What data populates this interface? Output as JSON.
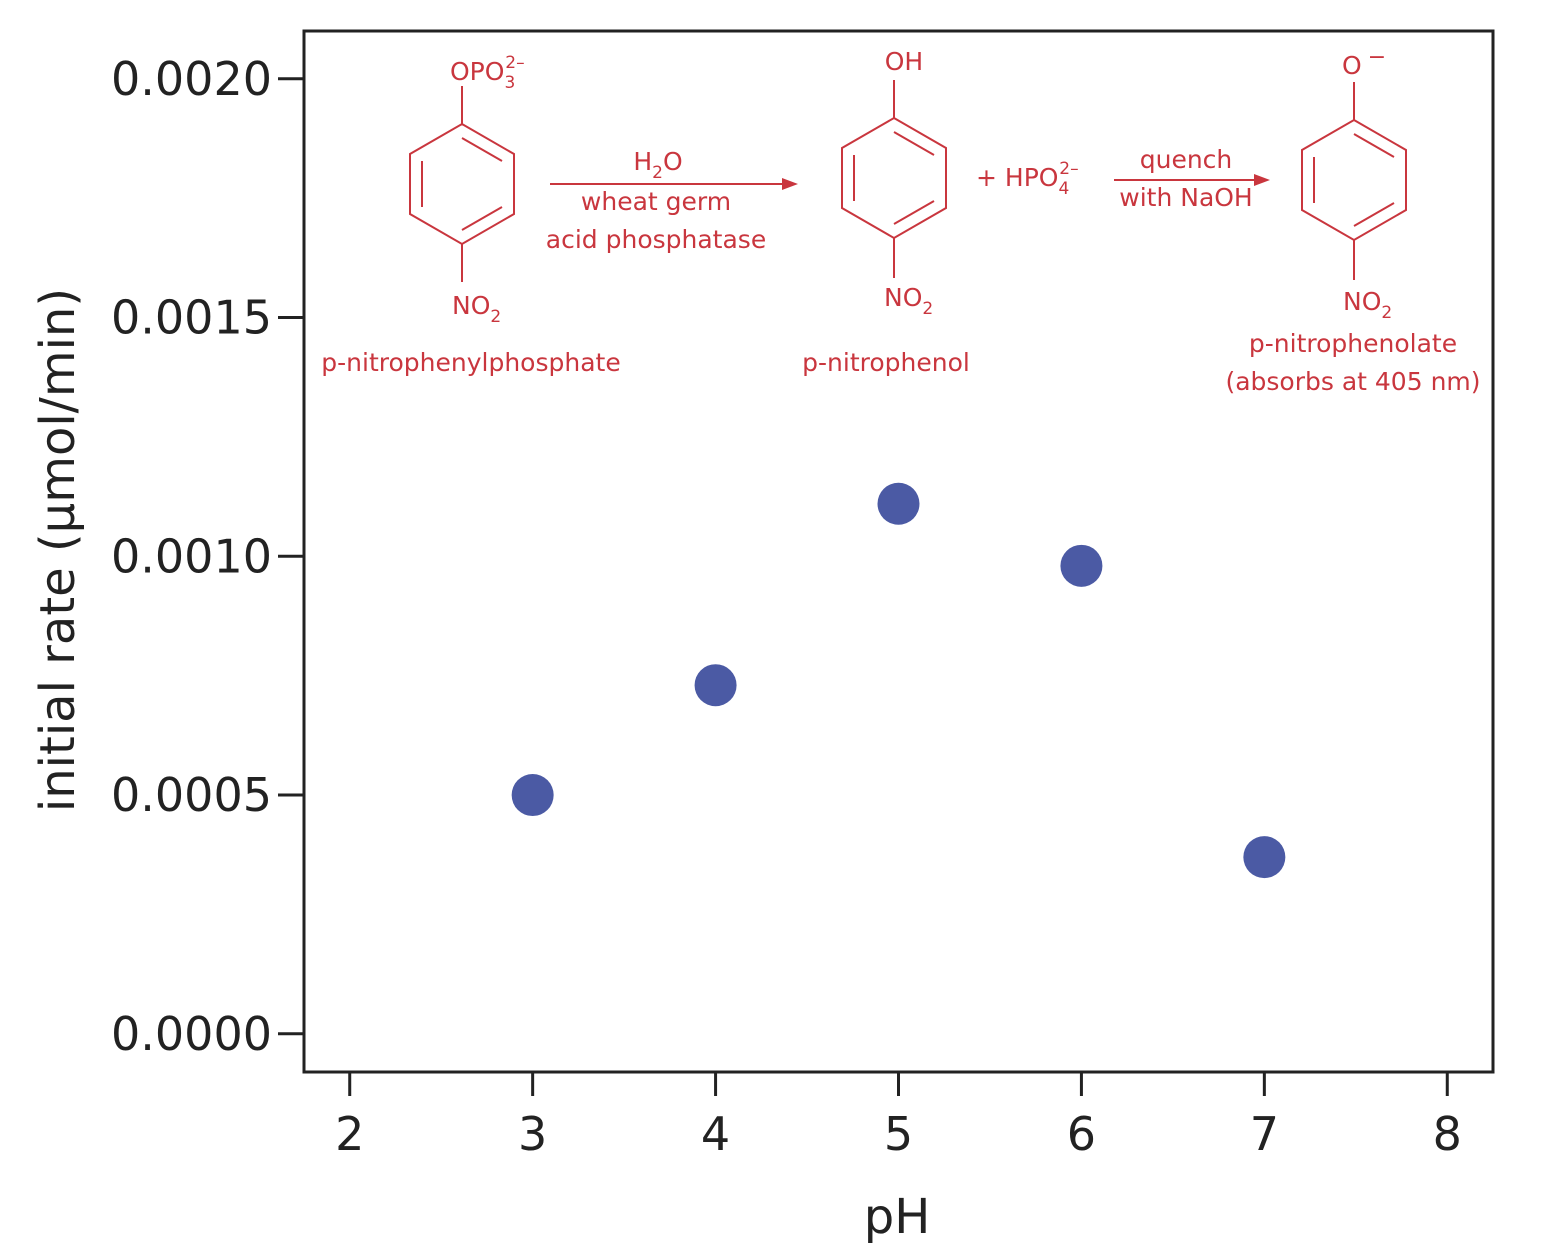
{
  "chart_data": {
    "type": "scatter",
    "xlabel": "pH",
    "ylabel": "initial rate (μmol/min)",
    "xlim": [
      1.75,
      8.25
    ],
    "ylim": [
      -8e-05,
      0.0021
    ],
    "xticks": [
      2,
      3,
      4,
      5,
      6,
      7,
      8
    ],
    "yticks": [
      0.0,
      0.0005,
      0.001,
      0.0015,
      0.002
    ],
    "ytick_labels": [
      "0.0000",
      "0.0005",
      "0.0010",
      "0.0015",
      "0.0020"
    ],
    "grid": false,
    "series": [
      {
        "x": [
          3,
          4,
          5,
          6,
          7
        ],
        "y": [
          0.0005,
          0.00073,
          0.00111,
          0.00098,
          0.00037
        ]
      }
    ]
  },
  "scheme": {
    "reactant": {
      "top": "OPO",
      "top_sub": "3",
      "top_sup": "2–",
      "bottom": "NO",
      "bottom_sub": "2",
      "name": "p-nitrophenylphosphate"
    },
    "arrow1": {
      "reagent_main": "H",
      "reagent_sub": "2",
      "reagent_tail": "O",
      "line2": "wheat germ",
      "line3": "acid phosphatase"
    },
    "product": {
      "top": "OH",
      "bottom": "NO",
      "bottom_sub": "2",
      "name": "p-nitrophenol"
    },
    "byproduct": {
      "text": "+ HPO",
      "sub": "4",
      "sup": "2–"
    },
    "arrow2": {
      "line1": "quench",
      "line2": "with NaOH"
    },
    "final": {
      "top": "O",
      "top_sup": "−",
      "bottom": "NO",
      "bottom_sub": "2",
      "name": "p-nitrophenolate",
      "note": "(absorbs at 405 nm)"
    }
  },
  "colors": {
    "points": "#4b5aa4",
    "scheme": "#c9363e",
    "axes": "#222222"
  }
}
